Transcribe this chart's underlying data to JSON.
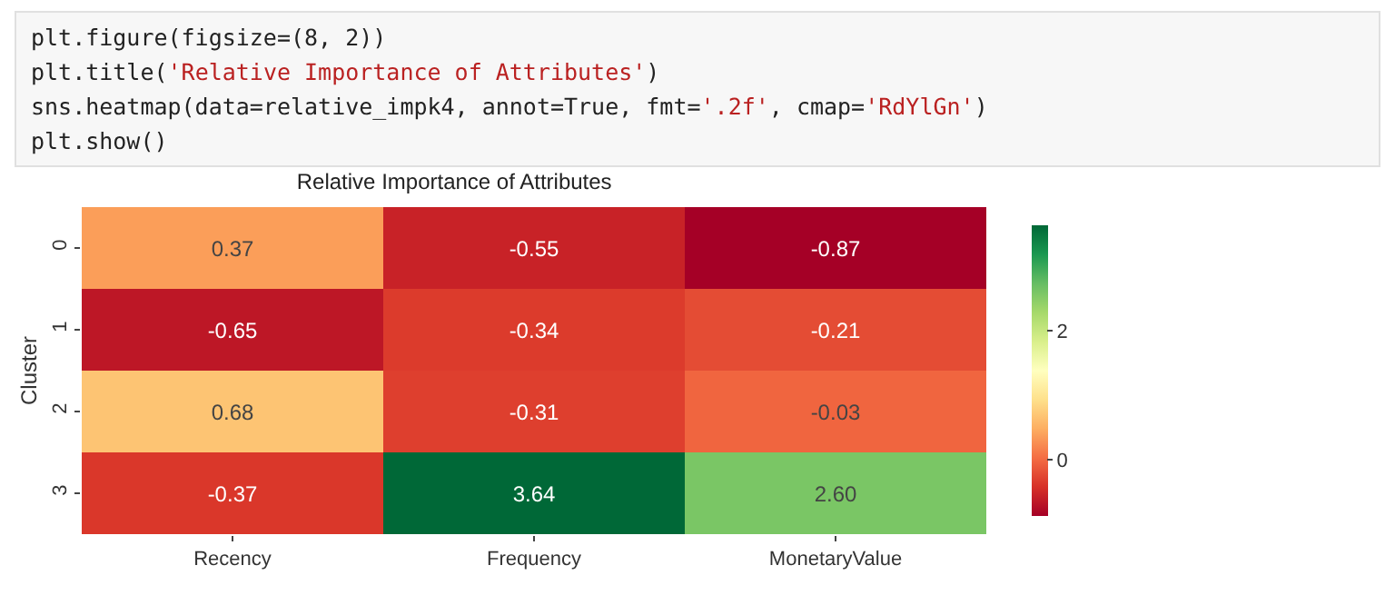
{
  "chart_data": {
    "type": "heatmap",
    "title": "Relative Importance of Attributes",
    "ylabel": "Cluster",
    "annotations": [
      "plt.figure(figsize=(8, 2))",
      "plt.title('Relative Importance of Attributes')",
      "sns.heatmap(data=relative_impk4, annot=True, fmt='.2f', cmap='RdYlGn')",
      "plt.show()"
    ],
    "categories": [
      "Recency",
      "Frequency",
      "MonetaryValue"
    ],
    "y_categories": [
      "0",
      "1",
      "2",
      "3"
    ],
    "cells": [
      [
        0.37,
        -0.55,
        -0.87
      ],
      [
        -0.65,
        -0.34,
        -0.21
      ],
      [
        0.68,
        -0.31,
        -0.03
      ],
      [
        -0.37,
        3.64,
        2.6
      ]
    ],
    "cell_labels": [
      [
        "0.37",
        "-0.55",
        "-0.87"
      ],
      [
        "-0.65",
        "-0.34",
        "-0.21"
      ],
      [
        "0.68",
        "-0.31",
        "-0.03"
      ],
      [
        "-0.37",
        "3.64",
        "2.60"
      ]
    ],
    "clim": [
      -0.87,
      3.64
    ],
    "cticks": [
      0,
      2
    ]
  }
}
